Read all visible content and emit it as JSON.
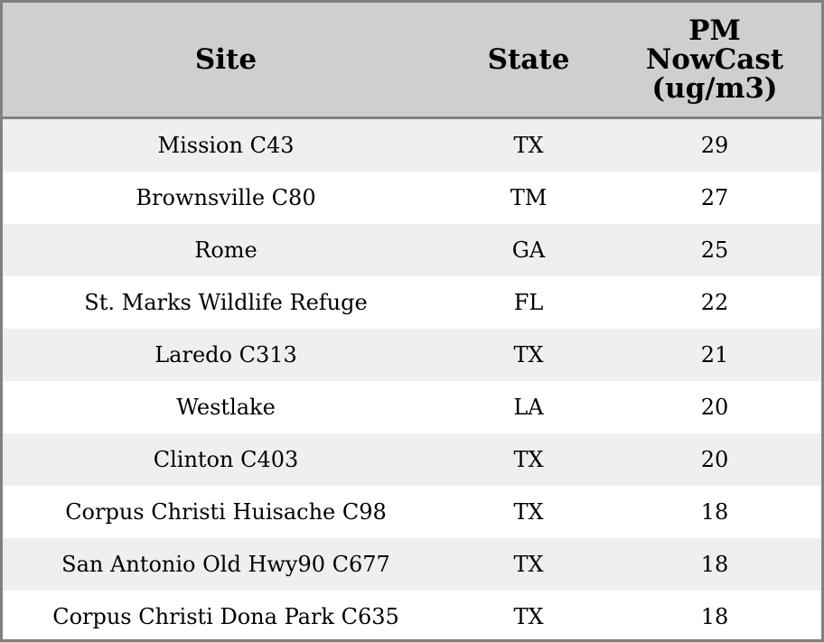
{
  "chart_data": {
    "type": "table",
    "columns": [
      "Site",
      "State",
      "PM\nNowCast\n(ug/m3)"
    ],
    "rows": [
      {
        "site": "Mission C43",
        "state": "TX",
        "pm": "29"
      },
      {
        "site": "Brownsville C80",
        "state": "TM",
        "pm": "27"
      },
      {
        "site": "Rome",
        "state": "GA",
        "pm": "25"
      },
      {
        "site": "St. Marks Wildlife Refuge",
        "state": "FL",
        "pm": "22"
      },
      {
        "site": "Laredo C313",
        "state": "TX",
        "pm": "21"
      },
      {
        "site": "Westlake",
        "state": "LA",
        "pm": "20"
      },
      {
        "site": "Clinton C403",
        "state": "TX",
        "pm": "20"
      },
      {
        "site": "Corpus Christi Huisache C98",
        "state": "TX",
        "pm": "18"
      },
      {
        "site": "San Antonio Old Hwy90 C677",
        "state": "TX",
        "pm": "18"
      },
      {
        "site": "Corpus Christi Dona Park C635",
        "state": "TX",
        "pm": "18"
      }
    ],
    "colors": {
      "header_bg": "#cfcfcf",
      "row_alt_bg": "#efefef",
      "row_bg": "#ffffff",
      "border": "#808080"
    }
  }
}
